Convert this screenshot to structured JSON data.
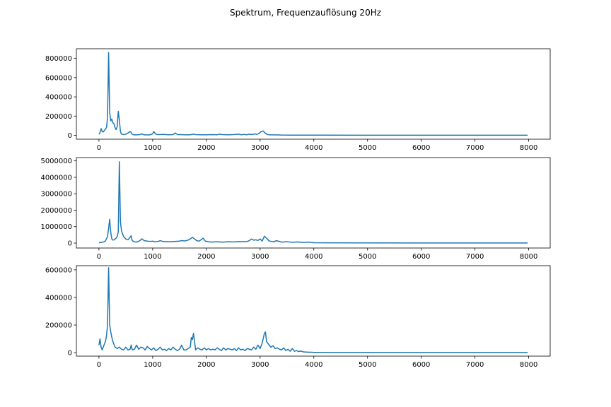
{
  "figure": {
    "suptitle": "Spektrum, Frequenzauflösung 20Hz"
  },
  "chart_data": [
    {
      "type": "line",
      "title": "",
      "xlabel": "",
      "ylabel": "",
      "xlim": [
        -420,
        8400
      ],
      "ylim": [
        -40000,
        900000
      ],
      "xticks": [
        0,
        1000,
        2000,
        3000,
        4000,
        5000,
        6000,
        7000,
        8000
      ],
      "yticks": [
        0,
        200000,
        400000,
        600000,
        800000
      ],
      "color": "#1f77b4",
      "grid": false,
      "series": [
        {
          "x": [
            0,
            20,
            40,
            60,
            80,
            100,
            120,
            140,
            160,
            180,
            200,
            220,
            240,
            260,
            280,
            300,
            320,
            340,
            360,
            380,
            400,
            420,
            440,
            460,
            480,
            500,
            540,
            580,
            600,
            620,
            660,
            700,
            760,
            800,
            840,
            880,
            940,
            1000,
            1020,
            1060,
            1100,
            1200,
            1300,
            1380,
            1420,
            1460,
            1500,
            1600,
            1700,
            1760,
            1800,
            1900,
            2000,
            2100,
            2200,
            2240,
            2300,
            2400,
            2500,
            2600,
            2650,
            2700,
            2750,
            2800,
            2850,
            2900,
            2940,
            2980,
            3020,
            3060,
            3100,
            3140,
            3200,
            3300,
            3400,
            3600,
            4000,
            5000,
            6000,
            7000,
            7980
          ],
          "y": [
            10000,
            30000,
            70000,
            40000,
            35000,
            50000,
            65000,
            80000,
            180000,
            860000,
            240000,
            150000,
            170000,
            130000,
            120000,
            80000,
            60000,
            90000,
            250000,
            160000,
            40000,
            15000,
            10000,
            8000,
            10000,
            12000,
            25000,
            40000,
            30000,
            10000,
            5000,
            5000,
            8000,
            15000,
            5000,
            5000,
            5000,
            15000,
            40000,
            12000,
            8000,
            10000,
            6000,
            8000,
            25000,
            8000,
            8000,
            6000,
            6000,
            12000,
            8000,
            6000,
            6000,
            8000,
            6000,
            12000,
            8000,
            6000,
            8000,
            12000,
            6000,
            10000,
            6000,
            12000,
            8000,
            15000,
            10000,
            20000,
            40000,
            45000,
            20000,
            8000,
            5000,
            5000,
            3000,
            2000,
            2000,
            1500,
            1500,
            1500,
            1000
          ]
        }
      ]
    },
    {
      "type": "line",
      "title": "",
      "xlabel": "",
      "ylabel": "",
      "xlim": [
        -420,
        8400
      ],
      "ylim": [
        -300000,
        5200000
      ],
      "xticks": [
        0,
        1000,
        2000,
        3000,
        4000,
        5000,
        6000,
        7000,
        8000
      ],
      "yticks": [
        0,
        1000000,
        2000000,
        3000000,
        4000000,
        5000000
      ],
      "color": "#1f77b4",
      "grid": false,
      "series": [
        {
          "x": [
            0,
            40,
            80,
            120,
            160,
            180,
            200,
            220,
            240,
            260,
            280,
            300,
            320,
            340,
            360,
            380,
            400,
            420,
            440,
            460,
            500,
            540,
            580,
            600,
            620,
            660,
            700,
            740,
            780,
            800,
            840,
            900,
            960,
            1000,
            1040,
            1100,
            1140,
            1200,
            1300,
            1400,
            1500,
            1540,
            1600,
            1660,
            1700,
            1740,
            1780,
            1820,
            1860,
            1900,
            1940,
            1980,
            2040,
            2100,
            2200,
            2300,
            2400,
            2500,
            2600,
            2700,
            2760,
            2800,
            2840,
            2880,
            2920,
            2960,
            3000,
            3040,
            3080,
            3120,
            3160,
            3200,
            3260,
            3300,
            3400,
            3500,
            3600,
            3700,
            3800,
            3900,
            4000,
            4200,
            5000,
            6000,
            7000,
            7980
          ],
          "y": [
            20000,
            40000,
            60000,
            120000,
            400000,
            900000,
            1450000,
            650000,
            250000,
            180000,
            200000,
            250000,
            300000,
            400000,
            700000,
            4950000,
            1300000,
            750000,
            550000,
            400000,
            250000,
            200000,
            350000,
            450000,
            150000,
            80000,
            60000,
            100000,
            200000,
            260000,
            150000,
            120000,
            100000,
            120000,
            80000,
            100000,
            150000,
            90000,
            80000,
            100000,
            120000,
            150000,
            130000,
            180000,
            250000,
            350000,
            250000,
            150000,
            120000,
            200000,
            300000,
            120000,
            80000,
            60000,
            80000,
            60000,
            80000,
            70000,
            90000,
            80000,
            100000,
            150000,
            250000,
            180000,
            200000,
            160000,
            250000,
            120000,
            420000,
            300000,
            150000,
            100000,
            80000,
            150000,
            60000,
            80000,
            50000,
            70000,
            40000,
            60000,
            20000,
            15000,
            10000,
            8000,
            6000,
            5000
          ]
        }
      ]
    },
    {
      "type": "line",
      "title": "",
      "xlabel": "",
      "ylabel": "",
      "xlim": [
        -420,
        8400
      ],
      "ylim": [
        -25000,
        630000
      ],
      "xticks": [
        0,
        1000,
        2000,
        3000,
        4000,
        5000,
        6000,
        7000,
        8000
      ],
      "yticks": [
        0,
        200000,
        400000,
        600000
      ],
      "color": "#1f77b4",
      "grid": false,
      "series": [
        {
          "x": [
            0,
            20,
            40,
            60,
            80,
            100,
            120,
            140,
            160,
            180,
            200,
            220,
            240,
            260,
            280,
            300,
            340,
            380,
            420,
            460,
            500,
            540,
            580,
            600,
            620,
            660,
            700,
            740,
            780,
            820,
            860,
            900,
            940,
            980,
            1020,
            1060,
            1100,
            1140,
            1180,
            1220,
            1260,
            1300,
            1340,
            1380,
            1420,
            1460,
            1500,
            1540,
            1580,
            1620,
            1660,
            1700,
            1720,
            1740,
            1760,
            1780,
            1800,
            1840,
            1880,
            1920,
            1960,
            2000,
            2040,
            2080,
            2120,
            2160,
            2200,
            2240,
            2280,
            2320,
            2360,
            2400,
            2440,
            2480,
            2520,
            2560,
            2600,
            2640,
            2680,
            2720,
            2760,
            2800,
            2840,
            2880,
            2920,
            2960,
            3000,
            3040,
            3080,
            3100,
            3120,
            3160,
            3200,
            3240,
            3280,
            3320,
            3360,
            3400,
            3440,
            3480,
            3520,
            3560,
            3600,
            3640,
            3680,
            3720,
            3760,
            3800,
            3840,
            3880,
            3920,
            3960,
            4000,
            4100,
            4300,
            5000,
            6000,
            7000,
            7980
          ],
          "y": [
            55000,
            100000,
            40000,
            20000,
            40000,
            60000,
            80000,
            120000,
            200000,
            615000,
            200000,
            150000,
            110000,
            80000,
            60000,
            40000,
            30000,
            40000,
            25000,
            20000,
            40000,
            20000,
            25000,
            55000,
            20000,
            25000,
            55000,
            25000,
            40000,
            35000,
            20000,
            45000,
            30000,
            20000,
            35000,
            15000,
            25000,
            40000,
            20000,
            25000,
            15000,
            30000,
            20000,
            40000,
            25000,
            15000,
            25000,
            55000,
            20000,
            20000,
            30000,
            40000,
            110000,
            95000,
            140000,
            80000,
            20000,
            35000,
            25000,
            20000,
            35000,
            20000,
            30000,
            20000,
            25000,
            20000,
            35000,
            25000,
            15000,
            35000,
            20000,
            30000,
            25000,
            20000,
            30000,
            15000,
            35000,
            20000,
            25000,
            15000,
            30000,
            25000,
            20000,
            40000,
            25000,
            55000,
            30000,
            70000,
            140000,
            150000,
            80000,
            60000,
            40000,
            50000,
            30000,
            35000,
            25000,
            20000,
            35000,
            15000,
            25000,
            10000,
            30000,
            10000,
            15000,
            8000,
            12000,
            6000,
            5000,
            4000,
            3000,
            3000,
            2000,
            2000,
            1500,
            1500,
            1500,
            1500,
            1200
          ]
        }
      ]
    }
  ]
}
